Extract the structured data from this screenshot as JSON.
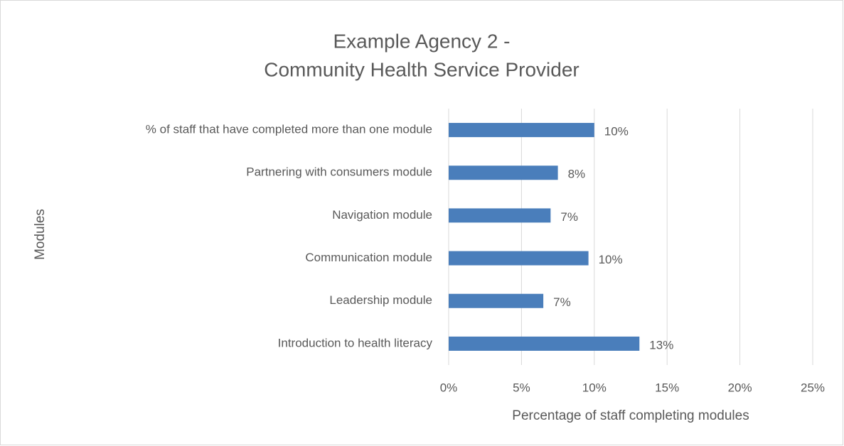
{
  "chart_data": {
    "type": "hbar",
    "title": [
      "Example Agency 2 -",
      "Community Health Service Provider"
    ],
    "xlabel": "Percentage of staff completing modules",
    "ylabel": "Modules",
    "categories": [
      "% of staff that have completed more than one module",
      "Partnering with consumers module",
      "Navigation module",
      "Communication module",
      "Leadership module",
      "Introduction to health literacy"
    ],
    "values": [
      10.0,
      7.5,
      7.0,
      9.6,
      6.5,
      13.1
    ],
    "value_labels": [
      "10%",
      "8%",
      "7%",
      "10%",
      "7%",
      "13%"
    ],
    "color": "#4a7ebb",
    "xlim": [
      0,
      25
    ],
    "xticks": [
      {
        "value": 0,
        "label": "0%"
      },
      {
        "value": 5,
        "label": "5%"
      },
      {
        "value": 10,
        "label": "10%"
      },
      {
        "value": 15,
        "label": "15%"
      },
      {
        "value": 20,
        "label": "20%"
      },
      {
        "value": 25,
        "label": "25%"
      }
    ],
    "grid": true
  }
}
